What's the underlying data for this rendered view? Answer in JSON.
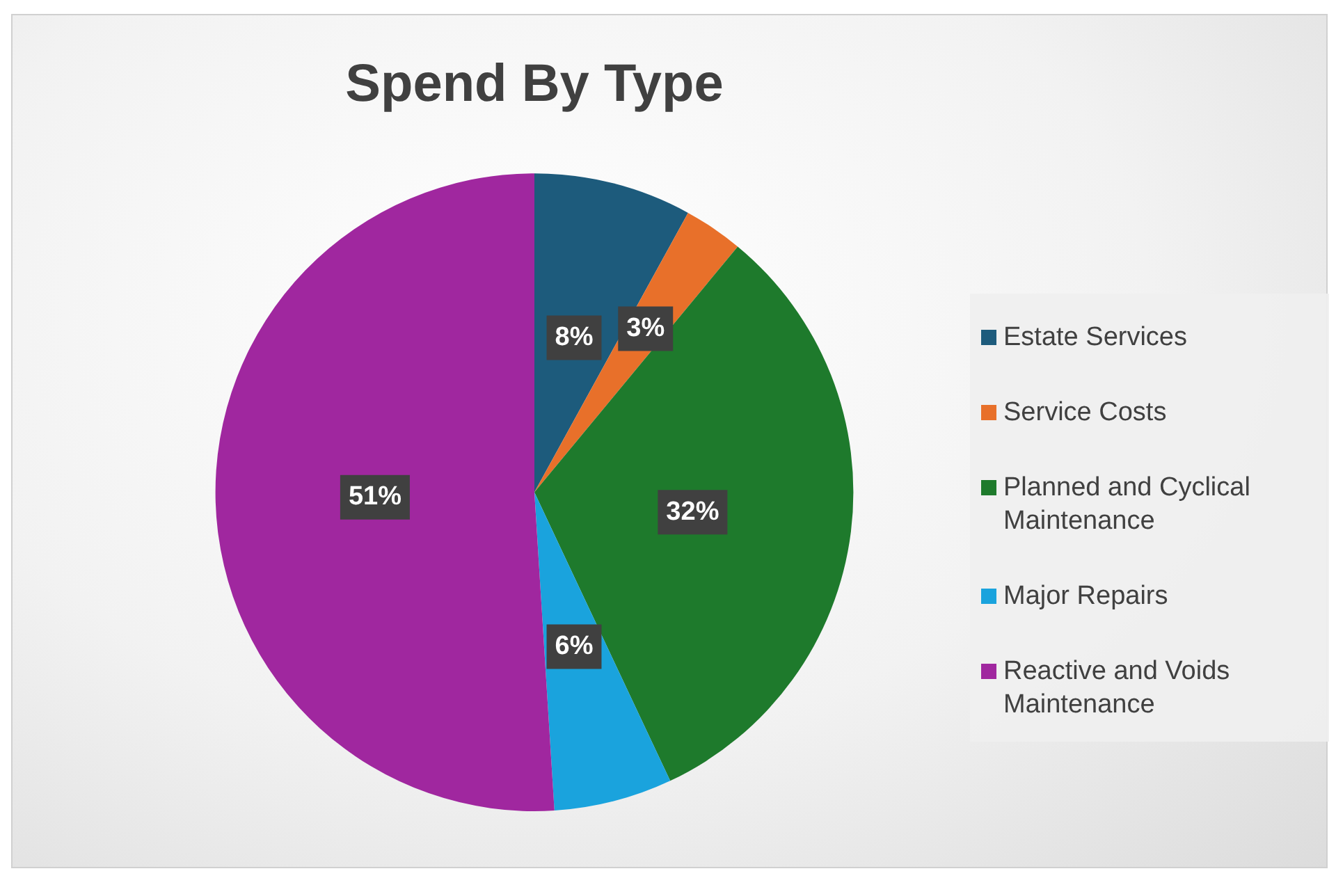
{
  "chart_data": {
    "type": "pie",
    "title": "Spend By Type",
    "categories": [
      "Estate Services",
      "Service Costs",
      "Planned and Cyclical Maintenance",
      "Major Repairs",
      "Reactive and Voids Maintenance"
    ],
    "values": [
      8,
      3,
      32,
      6,
      51
    ],
    "colors": [
      "#1d5b7c",
      "#e8702a",
      "#1e7a2c",
      "#1aa3dd",
      "#a0279f"
    ],
    "value_labels": [
      "8%",
      "3%",
      "32%",
      "6%",
      "51%"
    ],
    "legend": "right"
  }
}
